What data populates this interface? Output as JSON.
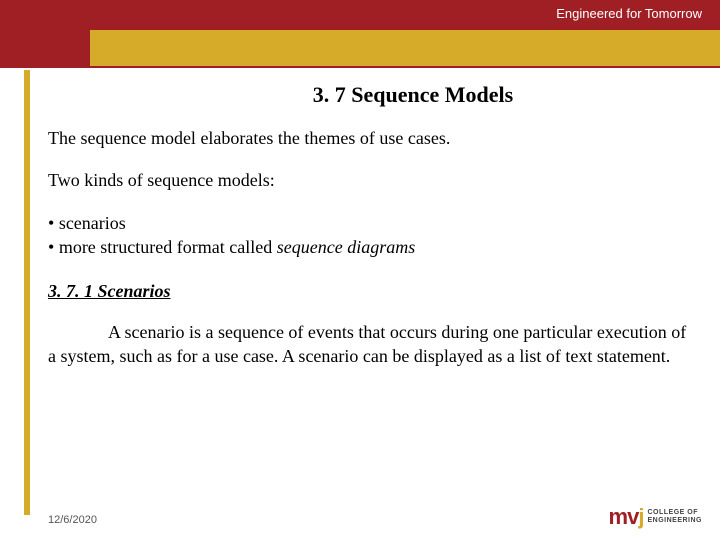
{
  "header": {
    "tagline": "Engineered for Tomorrow",
    "band_color": "#a01f24",
    "gold_color": "#d6ab2a"
  },
  "slide": {
    "title": "3. 7  Sequence Models",
    "intro": "The sequence model elaborates the themes of use cases.",
    "kinds_label": "Two kinds of sequence models:",
    "bullets": {
      "b1": "scenarios",
      "b2_prefix": "more structured format called ",
      "b2_italic": "sequence diagrams"
    },
    "sub_heading": "3. 7. 1 Scenarios",
    "scenario_para": "A scenario is a sequence of events that occurs during one particular execution of a system, such as for a use case. A scenario can be displayed as a list of text statement."
  },
  "footer": {
    "date": "12/6/2020",
    "logo_mark_m": "m",
    "logo_mark_v": "v",
    "logo_mark_j": "j",
    "logo_line1": "COLLEGE OF",
    "logo_line2": "ENGINEERING"
  },
  "styling": {
    "title_fontsize": 22,
    "body_fontsize": 18,
    "text_color": "#000000",
    "background_color": "#ffffff"
  }
}
